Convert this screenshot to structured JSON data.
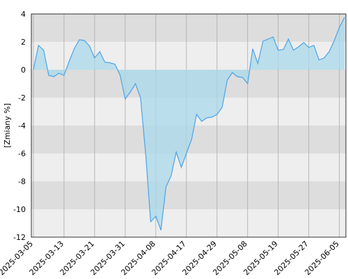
{
  "chart_data": {
    "type": "area",
    "y_label": "[Zmiany %]",
    "categories": [
      "2025-03-05",
      null,
      null,
      null,
      null,
      null,
      "2025-03-13",
      null,
      null,
      null,
      null,
      null,
      "2025-03-21",
      null,
      null,
      null,
      null,
      null,
      "2025-03-31",
      null,
      null,
      null,
      null,
      null,
      "2025-04-08",
      null,
      null,
      null,
      null,
      null,
      "2025-04-17",
      null,
      null,
      null,
      null,
      null,
      "2025-04-29",
      null,
      null,
      null,
      null,
      null,
      "2025-05-08",
      null,
      null,
      null,
      null,
      null,
      "2025-05-19",
      null,
      null,
      null,
      null,
      null,
      "2025-05-27",
      null,
      null,
      null,
      null,
      null,
      "2025-06-05",
      null
    ],
    "values": [
      0,
      1.75,
      1.4,
      -0.4,
      -0.5,
      -0.25,
      -0.4,
      0.6,
      1.5,
      2.15,
      2.1,
      1.7,
      0.85,
      1.3,
      0.55,
      0.5,
      0.4,
      -0.4,
      -2.1,
      -1.6,
      -1.0,
      -2.0,
      -6.0,
      -10.9,
      -10.5,
      -11.5,
      -8.4,
      -7.6,
      -5.9,
      -7.0,
      -6.0,
      -5.0,
      -3.2,
      -3.7,
      -3.45,
      -3.4,
      -3.2,
      -2.7,
      -0.75,
      -0.2,
      -0.5,
      -0.55,
      -1.0,
      1.5,
      0.45,
      2.05,
      2.2,
      2.35,
      1.4,
      1.45,
      2.2,
      1.4,
      1.65,
      1.95,
      1.6,
      1.75,
      0.7,
      0.85,
      1.3,
      2.1,
      3.05,
      3.75
    ],
    "color": "#4da3e6",
    "fill": "#a8d8ea",
    "ylim": [
      -12,
      4
    ],
    "yticks": [
      -12,
      -10,
      -8,
      -6,
      -4,
      -2,
      0,
      2,
      4
    ],
    "band_colors": [
      "#eeeeee",
      "#dddddd"
    ],
    "grid": true
  }
}
